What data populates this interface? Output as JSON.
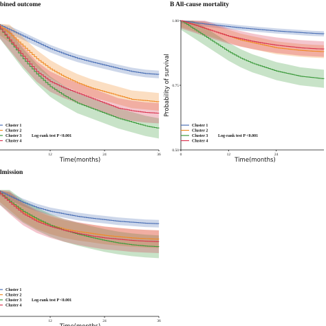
{
  "figure": {
    "panels": [
      {
        "id": "A",
        "title": "bined outcome"
      },
      {
        "id": "B",
        "title": "B  All-cause mortality"
      },
      {
        "id": "C",
        "title": "lmission"
      }
    ]
  },
  "chart_data": [
    {
      "type": "line",
      "panel": "A",
      "title": "bined outcome",
      "xlabel": "Time(months)",
      "ylabel": "",
      "xlim": [
        0,
        36
      ],
      "ylim": [
        0.5,
        1.0
      ],
      "x_ticks": [
        "12",
        "24",
        "36"
      ],
      "y_ticks": [],
      "legend": [
        "Cluster 1",
        "Cluster 2",
        "Cluster 3",
        "Cluster 4"
      ],
      "annotation": "Log-rank test  P <0.001",
      "series": [
        {
          "name": "Cluster 1",
          "color": "#4a6fb5",
          "band": 0.015,
          "x": [
            0,
            3,
            6,
            9,
            12,
            15,
            18,
            21,
            24,
            27,
            30,
            33,
            36
          ],
          "y": [
            1.0,
            0.975,
            0.95,
            0.925,
            0.9,
            0.88,
            0.862,
            0.848,
            0.835,
            0.822,
            0.81,
            0.802,
            0.798
          ]
        },
        {
          "name": "Cluster 2",
          "color": "#f08a24",
          "band": 0.035,
          "x": [
            0,
            3,
            6,
            9,
            12,
            15,
            18,
            21,
            24,
            27,
            30,
            33,
            36
          ],
          "y": [
            1.0,
            0.96,
            0.91,
            0.86,
            0.82,
            0.79,
            0.765,
            0.745,
            0.73,
            0.715,
            0.7,
            0.695,
            0.69
          ]
        },
        {
          "name": "Cluster 3",
          "color": "#3b9a3b",
          "band": 0.04,
          "x": [
            0,
            3,
            6,
            9,
            12,
            15,
            18,
            21,
            24,
            27,
            30,
            33,
            36
          ],
          "y": [
            1.0,
            0.93,
            0.86,
            0.8,
            0.75,
            0.715,
            0.685,
            0.665,
            0.645,
            0.625,
            0.61,
            0.595,
            0.585
          ]
        },
        {
          "name": "Cluster 4",
          "color": "#d9344f",
          "band": 0.04,
          "x": [
            0,
            3,
            6,
            9,
            12,
            15,
            18,
            21,
            24,
            27,
            30,
            33,
            36
          ],
          "y": [
            1.0,
            0.935,
            0.87,
            0.81,
            0.77,
            0.745,
            0.725,
            0.705,
            0.685,
            0.665,
            0.655,
            0.648,
            0.645
          ]
        }
      ]
    },
    {
      "type": "line",
      "panel": "B",
      "title": "All-cause mortality",
      "xlabel": "Time(months)",
      "ylabel": "Probability of survival",
      "xlim": [
        0,
        36
      ],
      "ylim": [
        0.5,
        1.0
      ],
      "x_ticks": [
        "0",
        "12",
        "24"
      ],
      "y_ticks": [
        "0.50",
        "0.75",
        "1.00"
      ],
      "legend": [
        "Cluster 1",
        "Cluster 2",
        "Cluster 3",
        "Cluster 4"
      ],
      "annotation": "Log-rank test  P <0.001",
      "series": [
        {
          "name": "Cluster 1",
          "color": "#4a6fb5",
          "band": 0.01,
          "x": [
            0,
            3,
            6,
            9,
            12,
            15,
            18,
            21,
            24,
            27,
            30,
            33,
            36
          ],
          "y": [
            1.0,
            0.993,
            0.987,
            0.982,
            0.977,
            0.972,
            0.968,
            0.964,
            0.96,
            0.957,
            0.954,
            0.951,
            0.949
          ]
        },
        {
          "name": "Cluster 2",
          "color": "#f08a24",
          "band": 0.025,
          "x": [
            0,
            3,
            6,
            9,
            12,
            15,
            18,
            21,
            24,
            27,
            30,
            33,
            36
          ],
          "y": [
            1.0,
            0.985,
            0.97,
            0.955,
            0.94,
            0.925,
            0.915,
            0.905,
            0.895,
            0.89,
            0.885,
            0.882,
            0.88
          ]
        },
        {
          "name": "Cluster 3",
          "color": "#3b9a3b",
          "band": 0.035,
          "x": [
            0,
            3,
            6,
            9,
            12,
            15,
            18,
            21,
            24,
            27,
            30,
            33,
            36
          ],
          "y": [
            1.0,
            0.97,
            0.94,
            0.91,
            0.88,
            0.855,
            0.835,
            0.82,
            0.805,
            0.795,
            0.785,
            0.78,
            0.775
          ]
        },
        {
          "name": "Cluster 4",
          "color": "#d9344f",
          "band": 0.03,
          "x": [
            0,
            3,
            6,
            9,
            12,
            15,
            18,
            21,
            24,
            27,
            30,
            33,
            36
          ],
          "y": [
            1.0,
            0.985,
            0.97,
            0.955,
            0.94,
            0.93,
            0.92,
            0.912,
            0.905,
            0.9,
            0.895,
            0.892,
            0.89
          ]
        }
      ]
    },
    {
      "type": "line",
      "panel": "C",
      "title": "lmission",
      "xlabel": "Time(months)",
      "ylabel": "",
      "xlim": [
        0,
        36
      ],
      "ylim": [
        0.5,
        1.0
      ],
      "x_ticks": [
        "12",
        "24",
        "36"
      ],
      "y_ticks": [],
      "legend": [
        "Cluster 1",
        "Cluster 2",
        "Cluster 3",
        "Cluster 4"
      ],
      "annotation": "Log-rank test  P <0.001",
      "series": [
        {
          "name": "Cluster 1",
          "color": "#4a6fb5",
          "band": 0.015,
          "x": [
            0,
            3,
            6,
            9,
            12,
            15,
            18,
            21,
            24,
            27,
            30,
            33,
            36
          ],
          "y": [
            1.0,
            0.975,
            0.95,
            0.93,
            0.915,
            0.905,
            0.895,
            0.888,
            0.882,
            0.876,
            0.872,
            0.868,
            0.866
          ]
        },
        {
          "name": "Cluster 2",
          "color": "#f08a24",
          "band": 0.035,
          "x": [
            0,
            3,
            6,
            9,
            12,
            15,
            18,
            21,
            24,
            27,
            30,
            33,
            36
          ],
          "y": [
            1.0,
            0.955,
            0.91,
            0.88,
            0.86,
            0.845,
            0.835,
            0.828,
            0.82,
            0.815,
            0.81,
            0.807,
            0.805
          ]
        },
        {
          "name": "Cluster 3",
          "color": "#3b9a3b",
          "band": 0.045,
          "x": [
            0,
            3,
            6,
            9,
            12,
            15,
            18,
            21,
            24,
            27,
            30,
            33,
            36
          ],
          "y": [
            1.0,
            0.955,
            0.915,
            0.885,
            0.86,
            0.84,
            0.825,
            0.812,
            0.8,
            0.79,
            0.783,
            0.778,
            0.775
          ]
        },
        {
          "name": "Cluster 4",
          "color": "#d9344f",
          "band": 0.045,
          "x": [
            0,
            3,
            6,
            9,
            12,
            15,
            18,
            21,
            24,
            27,
            30,
            33,
            36
          ],
          "y": [
            1.0,
            0.95,
            0.905,
            0.875,
            0.855,
            0.84,
            0.828,
            0.818,
            0.81,
            0.805,
            0.8,
            0.797,
            0.795
          ]
        }
      ]
    }
  ]
}
